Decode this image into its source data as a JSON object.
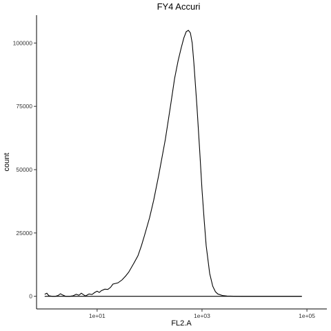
{
  "chart_data": {
    "type": "line",
    "title": "FY4 Accuri",
    "xlabel": "FL2.A",
    "ylabel": "count",
    "x_scale": "log10",
    "xlim": [
      0.7,
      240000
    ],
    "ylim": [
      -5000,
      111000
    ],
    "x_ticks": [
      {
        "value": 10,
        "label": "1e+01"
      },
      {
        "value": 1000,
        "label": "1e+03"
      },
      {
        "value": 100000,
        "label": "1e+05"
      }
    ],
    "y_ticks": [
      {
        "value": 0,
        "label": "0"
      },
      {
        "value": 25000,
        "label": "25000"
      },
      {
        "value": 50000,
        "label": "50000"
      },
      {
        "value": 75000,
        "label": "75000"
      },
      {
        "value": 100000,
        "label": "100000"
      }
    ],
    "grid": false,
    "legend": "none",
    "series": [
      {
        "points": [
          [
            1.0,
            800
          ],
          [
            1.1,
            1200
          ],
          [
            1.2,
            200
          ],
          [
            1.4,
            0
          ],
          [
            1.6,
            0
          ],
          [
            1.8,
            300
          ],
          [
            2.0,
            1000
          ],
          [
            2.2,
            500
          ],
          [
            2.5,
            0
          ],
          [
            3.0,
            0
          ],
          [
            3.5,
            200
          ],
          [
            4.0,
            800
          ],
          [
            4.5,
            400
          ],
          [
            5.0,
            1200
          ],
          [
            5.5,
            600
          ],
          [
            6.0,
            100
          ],
          [
            7.0,
            900
          ],
          [
            8.0,
            700
          ],
          [
            9.0,
            1500
          ],
          [
            10.0,
            2000
          ],
          [
            11.0,
            1500
          ],
          [
            12.0,
            2200
          ],
          [
            14.0,
            2800
          ],
          [
            16.0,
            2700
          ],
          [
            18.0,
            3500
          ],
          [
            20.0,
            4800
          ],
          [
            25.0,
            5300
          ],
          [
            30.0,
            6500
          ],
          [
            35.0,
            8000
          ],
          [
            40.0,
            9500
          ],
          [
            50.0,
            13000
          ],
          [
            60.0,
            16000
          ],
          [
            70.0,
            20000
          ],
          [
            80.0,
            24000
          ],
          [
            100.0,
            31000
          ],
          [
            120.0,
            38000
          ],
          [
            150.0,
            48000
          ],
          [
            200.0,
            62000
          ],
          [
            250.0,
            75000
          ],
          [
            300.0,
            86000
          ],
          [
            350.0,
            93000
          ],
          [
            400.0,
            98000
          ],
          [
            450.0,
            102000
          ],
          [
            500.0,
            104500
          ],
          [
            550.0,
            105000
          ],
          [
            600.0,
            104000
          ],
          [
            650.0,
            100000
          ],
          [
            700.0,
            92000
          ],
          [
            800.0,
            75000
          ],
          [
            900.0,
            58000
          ],
          [
            1000.0,
            42000
          ],
          [
            1100.0,
            30000
          ],
          [
            1200.0,
            20000
          ],
          [
            1400.0,
            9000
          ],
          [
            1600.0,
            4000
          ],
          [
            1800.0,
            1800
          ],
          [
            2000.0,
            900
          ],
          [
            2500.0,
            250
          ],
          [
            3000.0,
            80
          ],
          [
            4000.0,
            20
          ],
          [
            6000.0,
            0
          ],
          [
            10000.0,
            0
          ],
          [
            80000.0,
            0
          ]
        ],
        "baseline": [
          1.0,
          80000.0
        ]
      }
    ]
  }
}
